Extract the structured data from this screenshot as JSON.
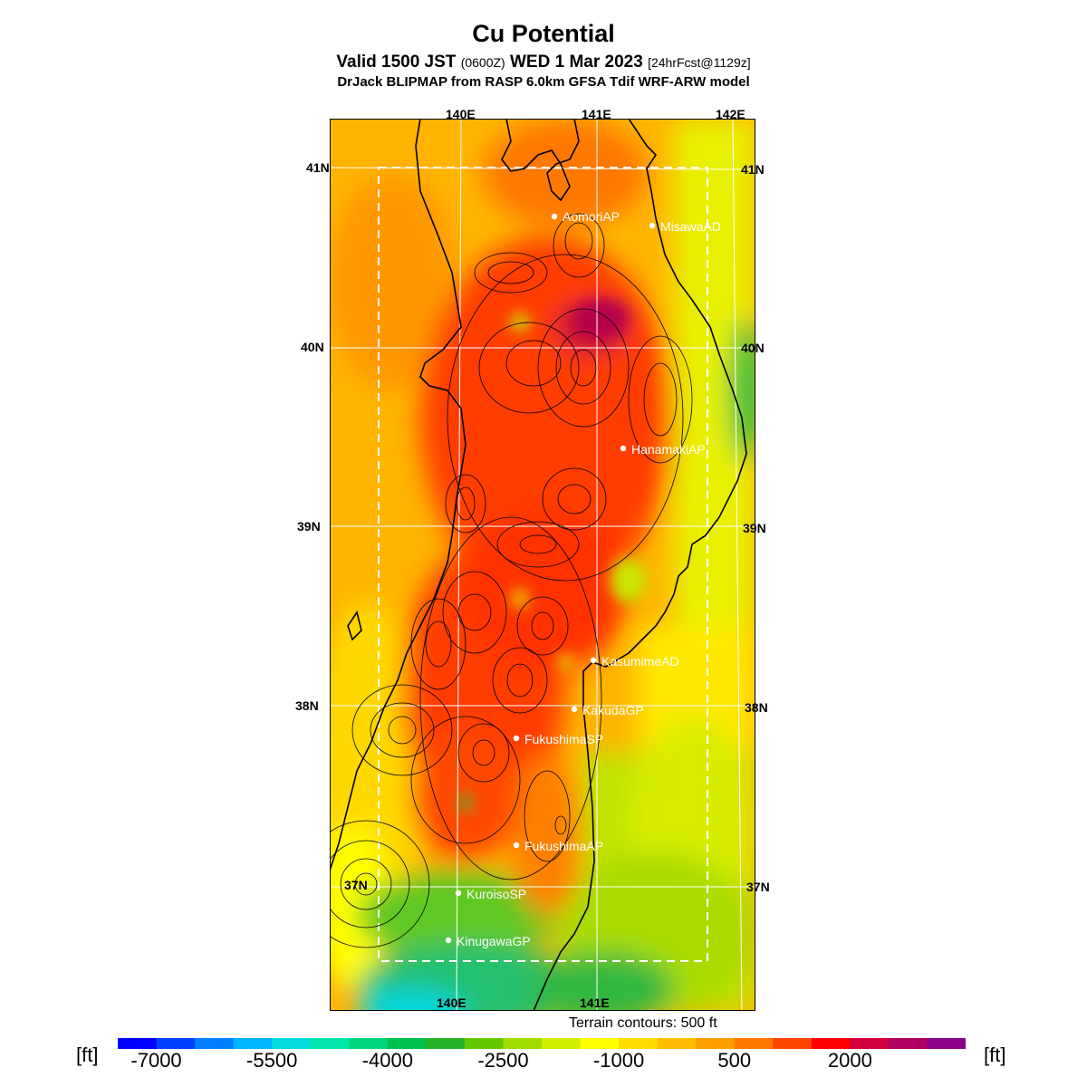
{
  "title": "Cu Potential",
  "subtitle": {
    "part1": "Valid 1500 JST ",
    "part2": "(0600Z)",
    "part3": " WED 1 Mar 2023 ",
    "part4": "[24hrFcst@1129z]"
  },
  "model_line": "DrJack BLIPMAP from RASP 6.0km GFSA Tdif WRF-ARW model",
  "top_lon_labels": [
    "140E",
    "141E",
    "142E"
  ],
  "bottom_lon_labels": [
    "140E",
    "141E"
  ],
  "left_lat_labels": [
    "41N",
    "40N",
    "39N",
    "38N",
    "37N"
  ],
  "right_lat_labels": [
    "41N",
    "40N",
    "39N",
    "38N",
    "37N"
  ],
  "stations": [
    {
      "name": "AomoriAP"
    },
    {
      "name": "MisawaAD"
    },
    {
      "name": "HanamakiAP"
    },
    {
      "name": "KasumimeAD"
    },
    {
      "name": "KakudaGP"
    },
    {
      "name": "FukushimaSP"
    },
    {
      "name": "FukushimaAP"
    },
    {
      "name": "KuroisoSP"
    },
    {
      "name": "KinugawaGP"
    }
  ],
  "terrain_note": "Terrain contours: 500 ft",
  "unit_label": "[ft]",
  "colorbar": {
    "colors": [
      "#0000ff",
      "#0040ff",
      "#0080ff",
      "#00b4ff",
      "#00dcdc",
      "#00e6aa",
      "#00d67a",
      "#00c050",
      "#28b428",
      "#64c800",
      "#a0dc00",
      "#d2ee00",
      "#ffff00",
      "#ffdc00",
      "#ffbc00",
      "#ff9c00",
      "#ff7800",
      "#ff4600",
      "#ff0000",
      "#d2003c",
      "#b00064",
      "#8c008c"
    ],
    "tick_labels": [
      "-7000",
      "-5500",
      "-4000",
      "-2500",
      "-1000",
      "500",
      "2000"
    ]
  }
}
